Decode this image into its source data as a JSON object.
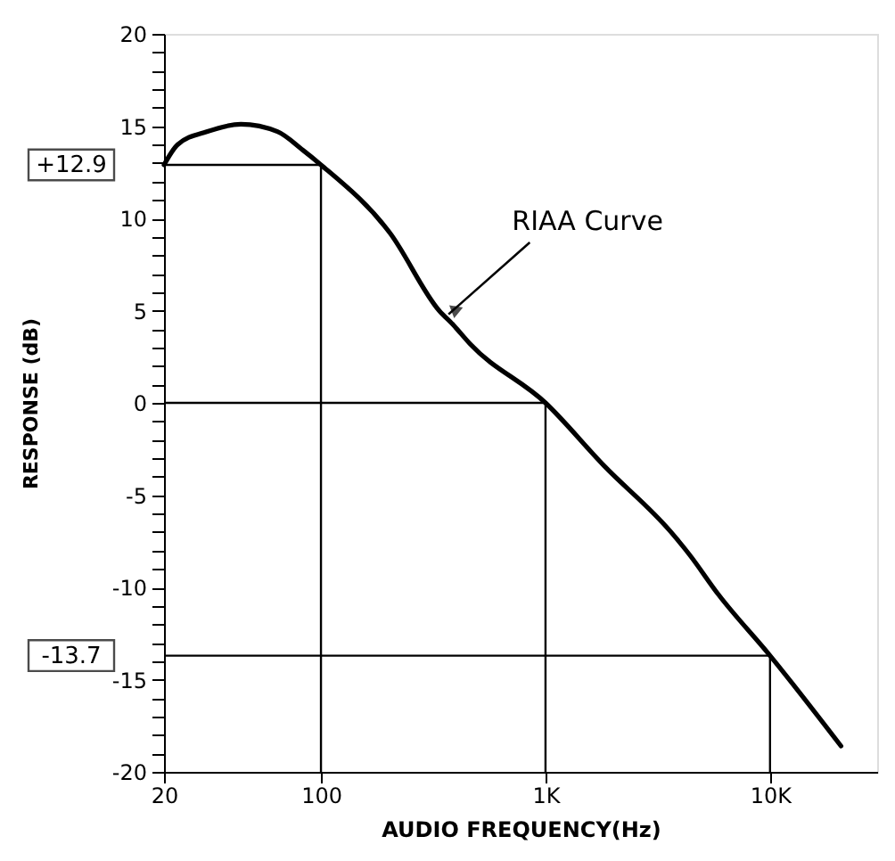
{
  "chart_data": {
    "type": "line",
    "xlabel": "AUDIO FREQUENCY(Hz)",
    "ylabel": "RESPONSE (dB)",
    "log": "x",
    "grid": false,
    "marker": "none",
    "line_style": "solid",
    "xlim": [
      20,
      30000
    ],
    "xticks": [
      20,
      {
        "value": 100,
        "label": "100"
      },
      {
        "value": 1000,
        "label": "1K"
      },
      {
        "value": 10000,
        "label": "10K"
      }
    ],
    "ylim": [
      -20,
      20
    ],
    "yticks": [
      -20,
      {
        "value": -19,
        "label": null
      },
      {
        "value": -18,
        "label": null
      },
      {
        "value": -17,
        "label": null
      },
      {
        "value": -16,
        "label": null
      },
      -15,
      {
        "value": -14,
        "label": null
      },
      {
        "value": -13,
        "label": null
      },
      {
        "value": -12,
        "label": null
      },
      {
        "value": -11,
        "label": null
      },
      -10,
      {
        "value": -9,
        "label": null
      },
      {
        "value": -8,
        "label": null
      },
      {
        "value": -7,
        "label": null
      },
      {
        "value": -6,
        "label": null
      },
      -5,
      {
        "value": -4,
        "label": null
      },
      {
        "value": -3,
        "label": null
      },
      {
        "value": -2,
        "label": null
      },
      {
        "value": -1,
        "label": null
      },
      0,
      {
        "value": 1,
        "label": null
      },
      {
        "value": 2,
        "label": null
      },
      {
        "value": 3,
        "label": null
      },
      {
        "value": 4,
        "label": null
      },
      5,
      {
        "value": 6,
        "label": null
      },
      {
        "value": 7,
        "label": null
      },
      {
        "value": 8,
        "label": null
      },
      {
        "value": 9,
        "label": null
      },
      10,
      {
        "value": 11,
        "label": null
      },
      {
        "value": 12,
        "label": null
      },
      {
        "value": 13,
        "label": null
      },
      {
        "value": 14,
        "label": null
      },
      15,
      {
        "value": 16,
        "label": null
      },
      {
        "value": 17,
        "label": null
      },
      {
        "value": 18,
        "label": null
      },
      {
        "value": 19,
        "label": null
      },
      20
    ],
    "x": [
      20,
      23,
      31,
      44,
      64,
      83,
      100,
      203,
      336,
      390,
      461,
      1000,
      1820,
      3620,
      4360,
      5900,
      10000,
      20700
    ],
    "series": [
      {
        "color": "#000000",
        "values": [
          12.9,
          14.0,
          14.7,
          15.1,
          14.7,
          13.7,
          12.9,
          9.2,
          5.0,
          4.2,
          3.2,
          0,
          -3.4,
          -7.0,
          -8.2,
          -10.4,
          -13.7,
          -18.6
        ]
      }
    ],
    "ref_lines": [
      {
        "axis": "y",
        "value": 12.9,
        "label": "+12.9",
        "color": "#000000"
      },
      {
        "axis": "y",
        "value": 0,
        "color": "#000000"
      },
      {
        "axis": "y",
        "value": -13.7,
        "label": "-13.7",
        "color": "#000000"
      },
      {
        "axis": "x",
        "value": 100,
        "color": "#000000"
      },
      {
        "axis": "x",
        "value": 1000,
        "color": "#000000"
      },
      {
        "axis": "x",
        "value": 10000,
        "color": "#000000"
      }
    ],
    "annotations": [
      {
        "text": "RIAA Curve",
        "x": 370,
        "y": 4.8
      }
    ]
  }
}
